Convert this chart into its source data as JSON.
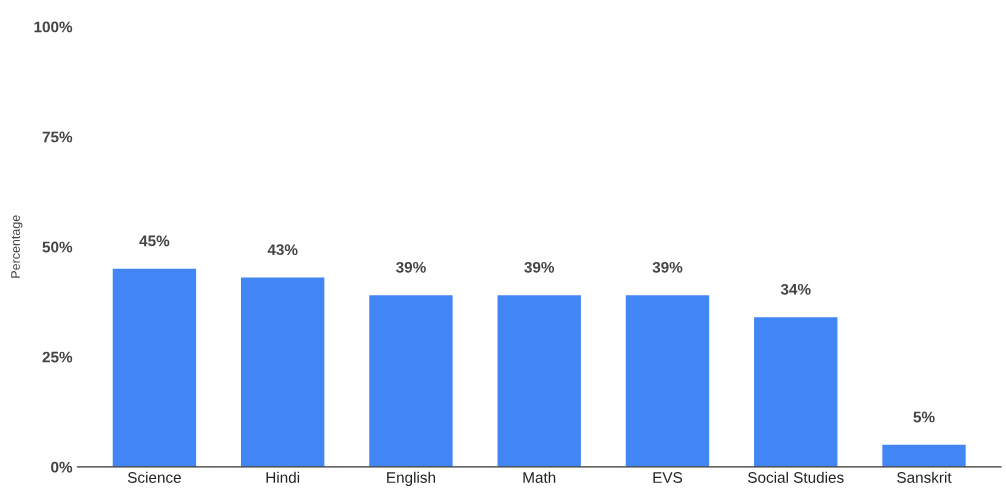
{
  "chart_data": {
    "type": "bar",
    "ylabel": "Percentage",
    "categories": [
      "Science",
      "Hindi",
      "English",
      "Math",
      "EVS",
      "Social Studies",
      "Sanskrit"
    ],
    "values": [
      45,
      43,
      39,
      39,
      39,
      34,
      5
    ],
    "color": "#4285f4",
    "ylim": [
      0,
      100
    ],
    "yticks": [
      {
        "value": 0,
        "label": "0%"
      },
      {
        "value": 25,
        "label": "25%"
      },
      {
        "value": 50,
        "label": "50%"
      },
      {
        "value": 75,
        "label": "75%"
      },
      {
        "value": 100,
        "label": "100%"
      }
    ],
    "value_labels": [
      "45%",
      "43%",
      "39%",
      "39%",
      "39%",
      "34%",
      "5%"
    ],
    "grid": false,
    "legend": false
  }
}
